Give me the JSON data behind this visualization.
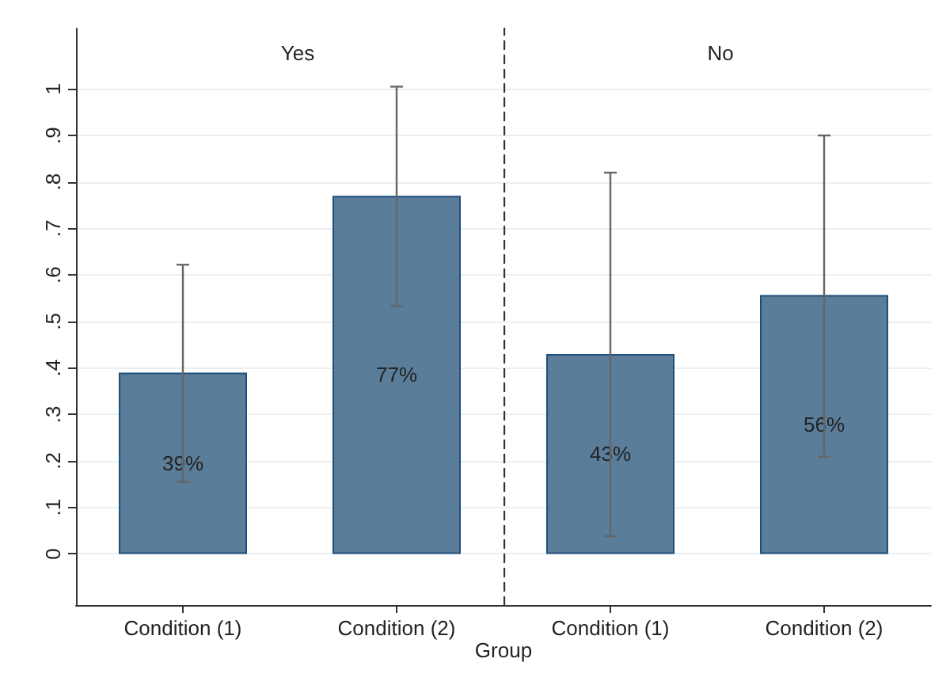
{
  "chart_data": [
    {
      "type": "bar",
      "title": "Yes",
      "xlabel": "Group",
      "categories": [
        "Condition (1)",
        "Condition (2)"
      ],
      "values": [
        0.39,
        0.77
      ],
      "value_labels": [
        "39%",
        "77%"
      ],
      "errors": [
        [
          0.155,
          0.622
        ],
        [
          0.533,
          1.005
        ]
      ],
      "color": "#5a7d9a",
      "ylim": [
        -0.11,
        1.13
      ],
      "yticks": [
        0,
        {
          "value": 0.1,
          "label": ".1"
        },
        {
          "value": 0.2,
          "label": ".2"
        },
        {
          "value": 0.3,
          "label": ".3"
        },
        {
          "value": 0.4,
          "label": ".4"
        },
        {
          "value": 0.5,
          "label": ".5"
        },
        {
          "value": 0.6,
          "label": ".6"
        },
        {
          "value": 0.7,
          "label": ".7"
        },
        {
          "value": 0.8,
          "label": ".8"
        },
        {
          "value": 0.9,
          "label": ".9"
        },
        1
      ],
      "grid": "y"
    },
    {
      "type": "bar",
      "title": "No",
      "categories": [
        "Condition (1)",
        "Condition (2)"
      ],
      "values": [
        0.43,
        0.557
      ],
      "value_labels": [
        "43%",
        "56%"
      ],
      "errors": [
        [
          0.038,
          0.82
        ],
        [
          0.209,
          0.9
        ]
      ],
      "color": "#5a7d9a",
      "ylim": [
        -0.11,
        1.13
      ],
      "yticks": [
        0,
        0.1,
        0.2,
        0.3,
        0.4,
        0.5,
        0.6,
        0.7,
        0.8,
        0.9,
        1
      ],
      "grid": "y",
      "tick_labels": "x"
    }
  ]
}
